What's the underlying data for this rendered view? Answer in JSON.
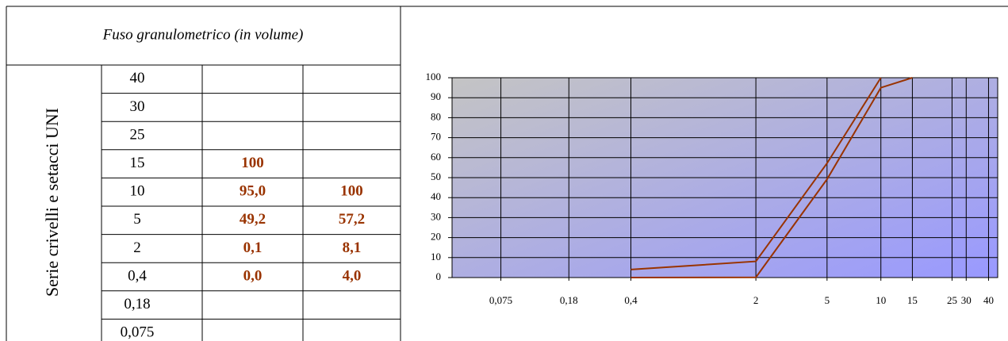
{
  "table": {
    "title": "Fuso granulometrico (in volume)",
    "side_label": "Serie crivelli e setacci UNI",
    "rows": [
      [
        "40",
        null,
        null
      ],
      [
        "30",
        null,
        null
      ],
      [
        "25",
        null,
        null
      ],
      [
        "15",
        "100",
        null
      ],
      [
        "10",
        "95,0",
        "100"
      ],
      [
        "5",
        "49,2",
        "57,2"
      ],
      [
        "2",
        "0,1",
        "8,1"
      ],
      [
        "0,4",
        "0,0",
        "4,0"
      ],
      [
        "0,18",
        null,
        null
      ],
      [
        "0,075",
        null,
        null
      ]
    ]
  },
  "chart_data": {
    "type": "line",
    "log_x": true,
    "grid": true,
    "x": [
      0.4,
      2,
      5,
      10,
      15
    ],
    "series": [
      {
        "color": "#993300",
        "values": [
          0,
          0.1,
          49.2,
          95,
          100
        ]
      },
      {
        "color": "#993300",
        "values": [
          4,
          8.1,
          57.2,
          100,
          null
        ]
      }
    ],
    "xlim": [
      0.04,
      45
    ],
    "ylim": [
      0,
      100
    ],
    "xticks": [
      {
        "value": 0.075,
        "label": "0,075"
      },
      {
        "value": 0.18,
        "label": "0,18"
      },
      {
        "value": 0.4,
        "label": "0,4"
      },
      2,
      5,
      10,
      15,
      25,
      30,
      40
    ],
    "yticks": [
      0,
      10,
      20,
      30,
      40,
      50,
      60,
      70,
      80,
      90,
      100
    ]
  }
}
